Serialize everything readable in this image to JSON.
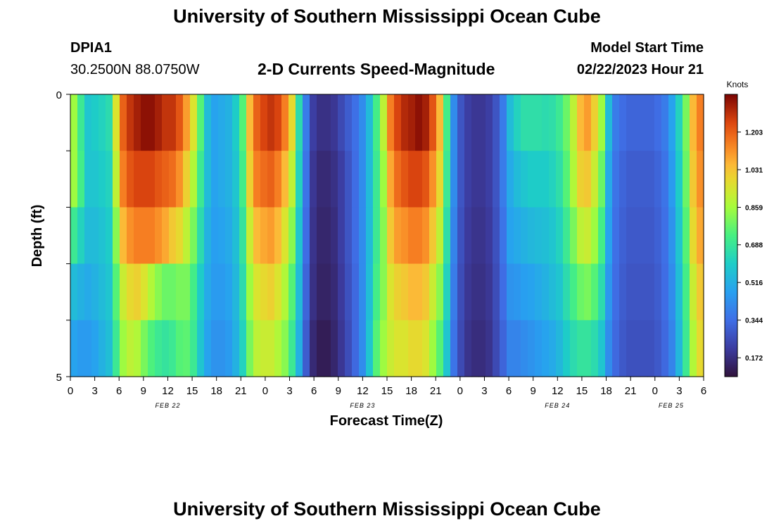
{
  "header": {
    "title": "University of Southern Mississippi Ocean Cube",
    "station_id": "DPIA1",
    "station_coords": "30.2500N  88.0750W",
    "model_start_label": "Model Start Time",
    "model_start_value": "02/22/2023 Hour 21",
    "footer_title": "University of Southern Mississippi Ocean Cube"
  },
  "chart_data": {
    "type": "heatmap",
    "title": "2-D Currents Speed-Magnitude",
    "xlabel": "Forecast Time(Z)",
    "ylabel": "Depth (ft)",
    "x_ticks": [
      "0",
      "3",
      "6",
      "9",
      "12",
      "15",
      "18",
      "21",
      "0",
      "3",
      "6",
      "9",
      "12",
      "15",
      "18",
      "21",
      "0",
      "3",
      "6",
      "9",
      "12",
      "15",
      "18",
      "21",
      "0",
      "3",
      "6"
    ],
    "date_labels": [
      "FEB 22",
      "FEB 23",
      "FEB 24",
      "FEB 25"
    ],
    "y_ticks": [
      "0",
      "5"
    ],
    "ylim": [
      0,
      5
    ],
    "xlim_hours": [
      0,
      78
    ],
    "depth_layers": 5,
    "colorbar": {
      "unit": "Knots",
      "ticks": [
        "1.203",
        "1.031",
        "0.859",
        "0.688",
        "0.516",
        "0.344",
        "0.172"
      ],
      "range": [
        0.086,
        1.375
      ]
    },
    "speed_knots": [
      [
        0.85,
        0.7,
        0.58,
        0.6,
        0.62,
        0.65,
        0.95,
        1.2,
        1.28,
        1.32,
        1.35,
        1.35,
        1.32,
        1.28,
        1.28,
        1.22,
        1.1,
        0.95,
        0.75,
        0.55,
        0.48,
        0.5,
        0.52,
        0.6,
        0.75,
        1.05,
        1.2,
        1.25,
        1.28,
        1.25,
        1.15,
        0.98,
        0.65,
        0.38,
        0.22,
        0.18,
        0.18,
        0.2,
        0.25,
        0.3,
        0.35,
        0.42,
        0.55,
        0.72,
        0.9,
        1.15,
        1.25,
        1.3,
        1.32,
        1.35,
        1.32,
        1.22,
        1.05,
        0.72,
        0.42,
        0.28,
        0.22,
        0.2,
        0.2,
        0.22,
        0.28,
        0.38,
        0.55,
        0.62,
        0.66,
        0.66,
        0.66,
        0.65,
        0.66,
        0.7,
        0.78,
        0.9,
        1.05,
        1.1,
        1.0,
        0.85,
        0.55,
        0.38,
        0.34,
        0.32,
        0.32,
        0.32,
        0.32,
        0.34,
        0.38,
        0.48,
        0.62,
        0.8,
        1.05,
        1.15
      ],
      [
        0.85,
        0.72,
        0.58,
        0.58,
        0.6,
        0.62,
        0.9,
        1.15,
        1.22,
        1.25,
        1.25,
        1.25,
        1.22,
        1.2,
        1.18,
        1.12,
        1.0,
        0.88,
        0.7,
        0.55,
        0.48,
        0.5,
        0.52,
        0.58,
        0.72,
        1.0,
        1.15,
        1.18,
        1.2,
        1.15,
        1.05,
        0.9,
        0.62,
        0.36,
        0.2,
        0.16,
        0.16,
        0.18,
        0.22,
        0.28,
        0.34,
        0.42,
        0.55,
        0.7,
        0.85,
        1.08,
        1.18,
        1.22,
        1.25,
        1.25,
        1.22,
        1.12,
        0.98,
        0.7,
        0.42,
        0.28,
        0.22,
        0.2,
        0.2,
        0.22,
        0.28,
        0.38,
        0.5,
        0.55,
        0.58,
        0.6,
        0.6,
        0.6,
        0.62,
        0.66,
        0.75,
        0.88,
        1.0,
        1.02,
        0.92,
        0.78,
        0.5,
        0.36,
        0.32,
        0.3,
        0.3,
        0.3,
        0.3,
        0.32,
        0.36,
        0.46,
        0.6,
        0.78,
        1.02,
        1.12
      ],
      [
        0.7,
        0.62,
        0.55,
        0.55,
        0.57,
        0.6,
        0.82,
        1.05,
        1.12,
        1.15,
        1.15,
        1.15,
        1.12,
        1.08,
        1.02,
        0.98,
        0.9,
        0.8,
        0.65,
        0.52,
        0.47,
        0.48,
        0.5,
        0.56,
        0.68,
        0.92,
        1.05,
        1.08,
        1.1,
        1.05,
        0.95,
        0.82,
        0.58,
        0.34,
        0.19,
        0.15,
        0.15,
        0.17,
        0.22,
        0.28,
        0.34,
        0.42,
        0.55,
        0.7,
        0.82,
        1.02,
        1.1,
        1.12,
        1.15,
        1.15,
        1.12,
        1.02,
        0.9,
        0.66,
        0.4,
        0.27,
        0.21,
        0.19,
        0.19,
        0.21,
        0.27,
        0.36,
        0.48,
        0.5,
        0.52,
        0.54,
        0.55,
        0.56,
        0.58,
        0.62,
        0.7,
        0.8,
        0.9,
        0.92,
        0.85,
        0.72,
        0.48,
        0.35,
        0.31,
        0.29,
        0.29,
        0.29,
        0.29,
        0.31,
        0.35,
        0.44,
        0.58,
        0.75,
        0.98,
        1.08
      ],
      [
        0.55,
        0.52,
        0.5,
        0.52,
        0.55,
        0.58,
        0.75,
        0.92,
        0.98,
        1.0,
        0.95,
        0.88,
        0.82,
        0.78,
        0.78,
        0.8,
        0.8,
        0.72,
        0.6,
        0.5,
        0.46,
        0.46,
        0.48,
        0.54,
        0.65,
        0.85,
        0.95,
        0.98,
        1.0,
        0.95,
        0.88,
        0.75,
        0.55,
        0.32,
        0.18,
        0.14,
        0.14,
        0.16,
        0.21,
        0.27,
        0.33,
        0.42,
        0.56,
        0.72,
        0.82,
        0.95,
        1.0,
        1.02,
        1.05,
        1.05,
        1.02,
        0.92,
        0.82,
        0.62,
        0.38,
        0.26,
        0.2,
        0.18,
        0.18,
        0.2,
        0.26,
        0.34,
        0.44,
        0.45,
        0.47,
        0.48,
        0.5,
        0.52,
        0.55,
        0.58,
        0.65,
        0.72,
        0.78,
        0.8,
        0.75,
        0.65,
        0.45,
        0.34,
        0.3,
        0.28,
        0.28,
        0.28,
        0.28,
        0.3,
        0.34,
        0.42,
        0.56,
        0.72,
        0.92,
        1.02
      ],
      [
        0.48,
        0.46,
        0.46,
        0.48,
        0.52,
        0.56,
        0.7,
        0.85,
        0.9,
        0.88,
        0.8,
        0.74,
        0.7,
        0.68,
        0.7,
        0.75,
        0.76,
        0.7,
        0.58,
        0.48,
        0.44,
        0.44,
        0.46,
        0.52,
        0.62,
        0.8,
        0.9,
        0.92,
        0.92,
        0.88,
        0.82,
        0.7,
        0.52,
        0.3,
        0.16,
        0.12,
        0.12,
        0.15,
        0.2,
        0.26,
        0.33,
        0.42,
        0.58,
        0.75,
        0.85,
        0.92,
        0.95,
        0.95,
        0.98,
        0.98,
        0.95,
        0.85,
        0.75,
        0.58,
        0.36,
        0.25,
        0.19,
        0.17,
        0.17,
        0.19,
        0.25,
        0.32,
        0.4,
        0.4,
        0.42,
        0.44,
        0.46,
        0.48,
        0.5,
        0.54,
        0.6,
        0.65,
        0.68,
        0.68,
        0.65,
        0.58,
        0.42,
        0.33,
        0.29,
        0.27,
        0.27,
        0.27,
        0.27,
        0.29,
        0.33,
        0.4,
        0.54,
        0.7,
        0.88,
        0.98
      ]
    ]
  }
}
